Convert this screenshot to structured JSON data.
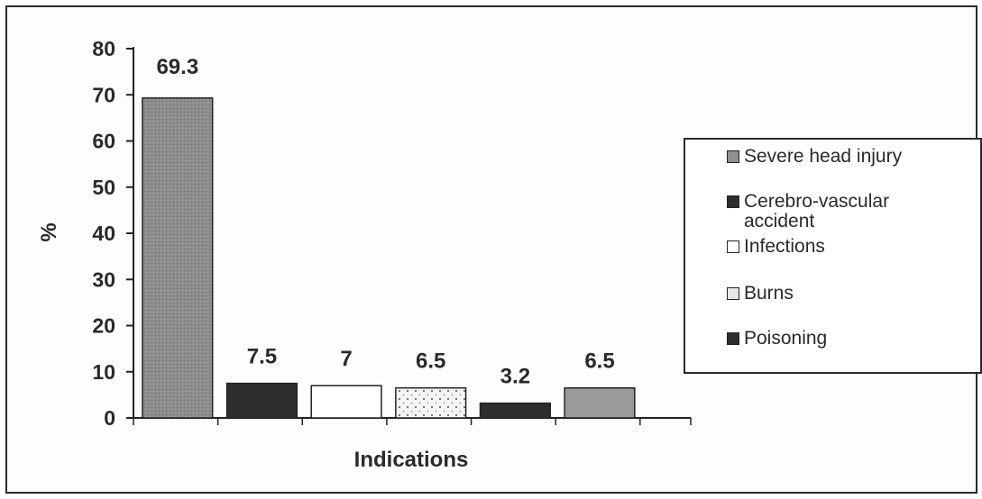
{
  "chart_data": {
    "type": "bar",
    "categories": [
      "Severe head injury",
      "Cerebro-vascular accident",
      "Infections",
      "Burns",
      "Poisoning",
      ""
    ],
    "values": [
      69.3,
      7.5,
      7,
      6.5,
      3.2,
      6.5
    ],
    "data_labels": [
      "69.3",
      "7.5",
      "7",
      "6.5",
      "3.2",
      "6.5"
    ],
    "bar_colors": [
      "#8f8f8f",
      "#2e2e2e",
      "#ffffff",
      "#e6e6e6",
      "#2e2e2e",
      "#9a9a9a"
    ],
    "xlabel": "Indications",
    "ylabel": "%",
    "ylim": [
      0,
      80
    ],
    "yticks": [
      "0",
      "10",
      "20",
      "30",
      "40",
      "50",
      "60",
      "70",
      "80"
    ],
    "grid": false,
    "legend_position": "right",
    "legend": [
      {
        "label": "Severe head injury",
        "color": "#8f8f8f"
      },
      {
        "label": "Cerebro-vascular accident",
        "color": "#2e2e2e"
      },
      {
        "label": "Infections",
        "color": "#ffffff"
      },
      {
        "label": "Burns",
        "color": "#e6e6e6"
      },
      {
        "label": "Poisoning",
        "color": "#2e2e2e"
      }
    ]
  }
}
